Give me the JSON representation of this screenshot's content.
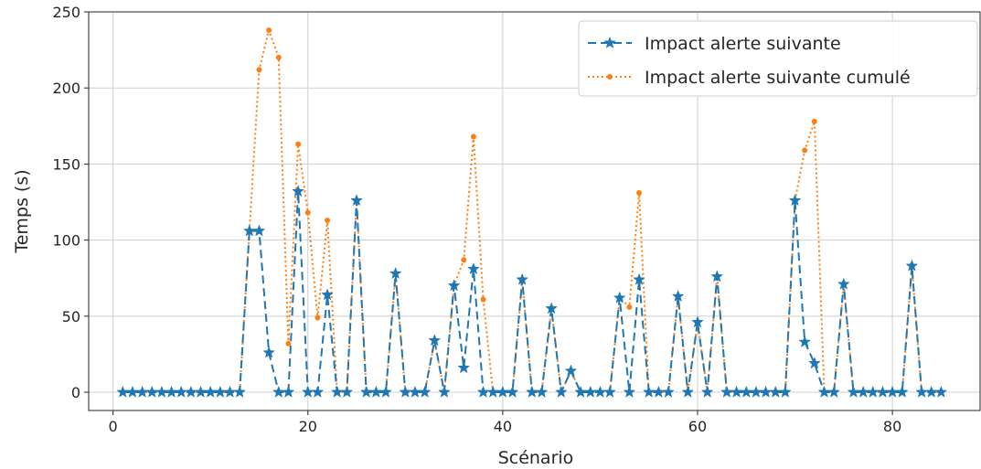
{
  "chart_data": {
    "type": "line",
    "title": "",
    "xlabel": "Scénario",
    "ylabel": "Temps (s)",
    "xlim": [
      -2.5,
      89
    ],
    "ylim": [
      -12,
      250
    ],
    "xticks": [
      0,
      20,
      40,
      60,
      80
    ],
    "yticks": [
      0,
      50,
      100,
      150,
      200,
      250
    ],
    "grid": true,
    "legend_position": "top-right",
    "x": [
      1,
      2,
      3,
      4,
      5,
      6,
      7,
      8,
      9,
      10,
      11,
      12,
      13,
      14,
      15,
      16,
      17,
      18,
      19,
      20,
      21,
      22,
      23,
      24,
      25,
      26,
      27,
      28,
      29,
      30,
      31,
      32,
      33,
      34,
      35,
      36,
      37,
      38,
      39,
      40,
      41,
      42,
      43,
      44,
      45,
      46,
      47,
      48,
      49,
      50,
      51,
      52,
      53,
      54,
      55,
      56,
      57,
      58,
      59,
      60,
      61,
      62,
      63,
      64,
      65,
      66,
      67,
      68,
      69,
      70,
      71,
      72,
      73,
      74,
      75,
      76,
      77,
      78,
      79,
      80,
      81,
      82,
      83,
      84,
      85
    ],
    "series": [
      {
        "name": "Impact alerte suivante",
        "color": "#1f77b4",
        "linestyle": "dashed",
        "marker": "star",
        "values": [
          0,
          0,
          0,
          0,
          0,
          0,
          0,
          0,
          0,
          0,
          0,
          0,
          0,
          106,
          106,
          26,
          0,
          0,
          132,
          0,
          0,
          64,
          0,
          0,
          126,
          0,
          0,
          0,
          78,
          0,
          0,
          0,
          34,
          0,
          70,
          16,
          81,
          0,
          0,
          0,
          0,
          74,
          0,
          0,
          55,
          0,
          14,
          0,
          0,
          0,
          0,
          62,
          0,
          74,
          0,
          0,
          0,
          63,
          0,
          46,
          0,
          76,
          0,
          0,
          0,
          0,
          0,
          0,
          0,
          126,
          33,
          19,
          0,
          0,
          71,
          0,
          0,
          0,
          0,
          0,
          0,
          83,
          0,
          0,
          0
        ]
      },
      {
        "name": "Impact alerte suivante cumulé",
        "color": "#ff7f0e",
        "linestyle": "dotted",
        "marker": "dot",
        "values": [
          0,
          0,
          0,
          0,
          0,
          0,
          0,
          0,
          0,
          0,
          0,
          0,
          0,
          106,
          212,
          238,
          220,
          32,
          163,
          118,
          49,
          113,
          0,
          0,
          126,
          0,
          0,
          0,
          78,
          0,
          0,
          0,
          34,
          0,
          70,
          87,
          168,
          61,
          0,
          0,
          0,
          74,
          0,
          0,
          55,
          0,
          14,
          0,
          0,
          0,
          0,
          62,
          56,
          131,
          0,
          0,
          0,
          63,
          0,
          46,
          0,
          76,
          0,
          0,
          0,
          0,
          0,
          0,
          0,
          126,
          159,
          178,
          0,
          0,
          71,
          0,
          0,
          0,
          0,
          0,
          0,
          83,
          0,
          0,
          0
        ]
      }
    ]
  }
}
